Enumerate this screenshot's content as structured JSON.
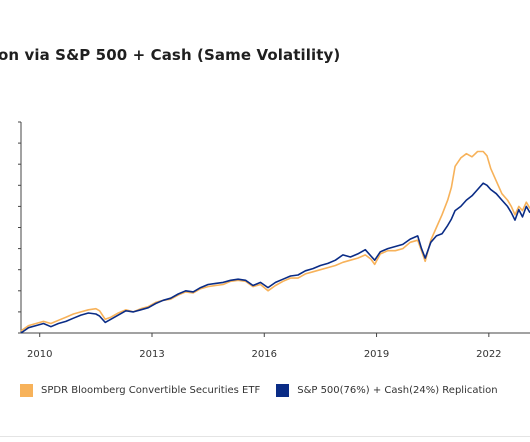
{
  "title": "on via S&P 500 + Cash (Same Volatility)",
  "colors": {
    "etf": "#F7B25A",
    "replication": "#0A2C86",
    "axis": "#333333"
  },
  "legend": {
    "etf": "SPDR Bloomberg Convertible Securities ETF",
    "replication": "S&P 500(76%) + Cash(24%) Replication"
  },
  "chart_data": {
    "type": "line",
    "title": "on via S&P 500 + Cash (Same Volatility)",
    "xlabel": "",
    "ylabel": "",
    "grid": false,
    "legend_position": "bottom",
    "xlim": [
      2009.5,
      2023.1
    ],
    "ylim": [
      0,
      10
    ],
    "x_ticks": [
      "2010",
      "2013",
      "2016",
      "2019",
      "2022"
    ],
    "x_tick_values": [
      2010,
      2013,
      2016,
      2019,
      2022
    ],
    "y_tick_values": [
      0,
      1,
      2,
      3,
      4,
      5,
      6,
      7,
      8,
      9,
      10
    ],
    "y_tick_labels": [
      "",
      "",
      "",
      "",
      "",
      "",
      "",
      "",
      "",
      "",
      ""
    ],
    "series": [
      {
        "name": "SPDR Bloomberg Convertible Securities ETF",
        "color": "#F7B25A",
        "points": [
          [
            2009.5,
            0.1
          ],
          [
            2009.7,
            0.35
          ],
          [
            2009.9,
            0.45
          ],
          [
            2010.1,
            0.55
          ],
          [
            2010.3,
            0.45
          ],
          [
            2010.5,
            0.6
          ],
          [
            2010.7,
            0.75
          ],
          [
            2010.9,
            0.9
          ],
          [
            2011.1,
            1.0
          ],
          [
            2011.3,
            1.1
          ],
          [
            2011.5,
            1.15
          ],
          [
            2011.6,
            1.05
          ],
          [
            2011.75,
            0.65
          ],
          [
            2011.9,
            0.75
          ],
          [
            2012.1,
            0.95
          ],
          [
            2012.3,
            1.1
          ],
          [
            2012.5,
            1.0
          ],
          [
            2012.7,
            1.15
          ],
          [
            2012.9,
            1.25
          ],
          [
            2013.1,
            1.45
          ],
          [
            2013.3,
            1.55
          ],
          [
            2013.5,
            1.6
          ],
          [
            2013.7,
            1.8
          ],
          [
            2013.9,
            1.95
          ],
          [
            2014.1,
            1.9
          ],
          [
            2014.3,
            2.1
          ],
          [
            2014.5,
            2.2
          ],
          [
            2014.7,
            2.25
          ],
          [
            2014.9,
            2.3
          ],
          [
            2015.1,
            2.45
          ],
          [
            2015.3,
            2.5
          ],
          [
            2015.5,
            2.45
          ],
          [
            2015.7,
            2.2
          ],
          [
            2015.9,
            2.3
          ],
          [
            2016.1,
            2.0
          ],
          [
            2016.3,
            2.25
          ],
          [
            2016.5,
            2.45
          ],
          [
            2016.7,
            2.6
          ],
          [
            2016.9,
            2.6
          ],
          [
            2017.1,
            2.8
          ],
          [
            2017.3,
            2.9
          ],
          [
            2017.5,
            3.0
          ],
          [
            2017.7,
            3.1
          ],
          [
            2017.9,
            3.2
          ],
          [
            2018.1,
            3.35
          ],
          [
            2018.3,
            3.45
          ],
          [
            2018.5,
            3.55
          ],
          [
            2018.7,
            3.7
          ],
          [
            2018.85,
            3.5
          ],
          [
            2018.95,
            3.25
          ],
          [
            2019.1,
            3.75
          ],
          [
            2019.3,
            3.9
          ],
          [
            2019.5,
            3.9
          ],
          [
            2019.7,
            4.0
          ],
          [
            2019.9,
            4.3
          ],
          [
            2020.1,
            4.4
          ],
          [
            2020.2,
            3.9
          ],
          [
            2020.3,
            3.4
          ],
          [
            2020.45,
            4.4
          ],
          [
            2020.6,
            5.0
          ],
          [
            2020.75,
            5.6
          ],
          [
            2020.9,
            6.3
          ],
          [
            2021.0,
            6.9
          ],
          [
            2021.1,
            7.9
          ],
          [
            2021.25,
            8.3
          ],
          [
            2021.4,
            8.5
          ],
          [
            2021.55,
            8.35
          ],
          [
            2021.7,
            8.6
          ],
          [
            2021.85,
            8.6
          ],
          [
            2021.95,
            8.4
          ],
          [
            2022.05,
            7.8
          ],
          [
            2022.2,
            7.2
          ],
          [
            2022.35,
            6.6
          ],
          [
            2022.5,
            6.3
          ],
          [
            2022.6,
            6.0
          ],
          [
            2022.7,
            5.6
          ],
          [
            2022.8,
            6.0
          ],
          [
            2022.9,
            5.8
          ],
          [
            2023.0,
            6.2
          ],
          [
            2023.1,
            5.9
          ]
        ]
      },
      {
        "name": "S&P 500(76%) + Cash(24%) Replication",
        "color": "#0A2C86",
        "points": [
          [
            2009.5,
            0.0
          ],
          [
            2009.7,
            0.25
          ],
          [
            2009.9,
            0.35
          ],
          [
            2010.1,
            0.45
          ],
          [
            2010.3,
            0.3
          ],
          [
            2010.5,
            0.45
          ],
          [
            2010.7,
            0.55
          ],
          [
            2010.9,
            0.7
          ],
          [
            2011.1,
            0.85
          ],
          [
            2011.3,
            0.95
          ],
          [
            2011.5,
            0.9
          ],
          [
            2011.6,
            0.8
          ],
          [
            2011.75,
            0.5
          ],
          [
            2011.9,
            0.65
          ],
          [
            2012.1,
            0.85
          ],
          [
            2012.3,
            1.05
          ],
          [
            2012.5,
            1.0
          ],
          [
            2012.7,
            1.1
          ],
          [
            2012.9,
            1.2
          ],
          [
            2013.1,
            1.4
          ],
          [
            2013.3,
            1.55
          ],
          [
            2013.5,
            1.65
          ],
          [
            2013.7,
            1.85
          ],
          [
            2013.9,
            2.0
          ],
          [
            2014.1,
            1.95
          ],
          [
            2014.3,
            2.15
          ],
          [
            2014.5,
            2.3
          ],
          [
            2014.7,
            2.35
          ],
          [
            2014.9,
            2.4
          ],
          [
            2015.1,
            2.5
          ],
          [
            2015.3,
            2.55
          ],
          [
            2015.5,
            2.5
          ],
          [
            2015.7,
            2.25
          ],
          [
            2015.9,
            2.4
          ],
          [
            2016.1,
            2.15
          ],
          [
            2016.3,
            2.4
          ],
          [
            2016.5,
            2.55
          ],
          [
            2016.7,
            2.7
          ],
          [
            2016.9,
            2.75
          ],
          [
            2017.1,
            2.95
          ],
          [
            2017.3,
            3.05
          ],
          [
            2017.5,
            3.2
          ],
          [
            2017.7,
            3.3
          ],
          [
            2017.9,
            3.45
          ],
          [
            2018.1,
            3.7
          ],
          [
            2018.3,
            3.6
          ],
          [
            2018.5,
            3.75
          ],
          [
            2018.7,
            3.95
          ],
          [
            2018.85,
            3.65
          ],
          [
            2018.95,
            3.45
          ],
          [
            2019.1,
            3.85
          ],
          [
            2019.3,
            4.0
          ],
          [
            2019.5,
            4.1
          ],
          [
            2019.7,
            4.2
          ],
          [
            2019.9,
            4.45
          ],
          [
            2020.1,
            4.6
          ],
          [
            2020.2,
            4.0
          ],
          [
            2020.3,
            3.55
          ],
          [
            2020.45,
            4.3
          ],
          [
            2020.6,
            4.6
          ],
          [
            2020.75,
            4.7
          ],
          [
            2020.9,
            5.1
          ],
          [
            2021.0,
            5.4
          ],
          [
            2021.1,
            5.8
          ],
          [
            2021.25,
            6.0
          ],
          [
            2021.4,
            6.3
          ],
          [
            2021.55,
            6.5
          ],
          [
            2021.7,
            6.8
          ],
          [
            2021.85,
            7.1
          ],
          [
            2021.95,
            7.0
          ],
          [
            2022.05,
            6.8
          ],
          [
            2022.2,
            6.6
          ],
          [
            2022.35,
            6.3
          ],
          [
            2022.5,
            6.0
          ],
          [
            2022.6,
            5.7
          ],
          [
            2022.7,
            5.35
          ],
          [
            2022.8,
            5.85
          ],
          [
            2022.9,
            5.5
          ],
          [
            2023.0,
            6.0
          ],
          [
            2023.1,
            5.7
          ]
        ]
      }
    ]
  }
}
